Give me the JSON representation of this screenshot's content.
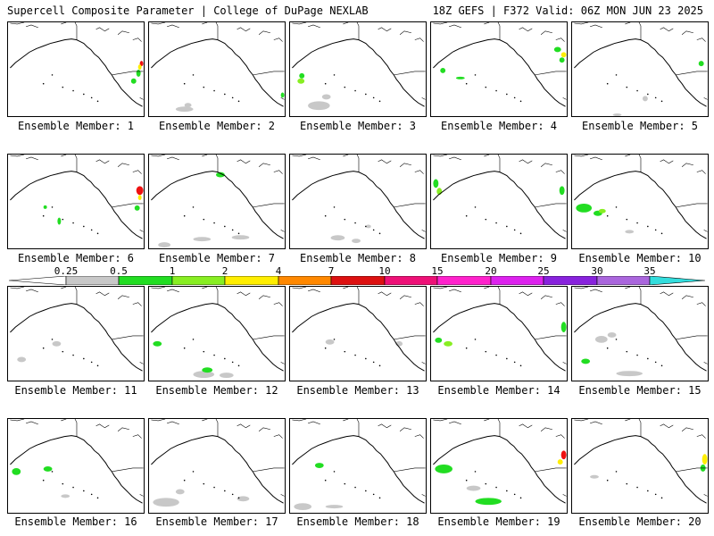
{
  "header": {
    "left": "Supercell Composite Parameter | College of DuPage NEXLAB",
    "right": "18Z GEFS | F372 Valid: 06Z MON JUN 23 2025"
  },
  "colors": {
    "gray": "#c8c8c8",
    "green": "#22dd22",
    "lightgreen": "#88ee22",
    "yellow": "#ffee00",
    "orange": "#ff8800",
    "red": "#ee1111"
  },
  "colorbar": {
    "ticks": [
      "0.25",
      "0.5",
      "1",
      "2",
      "4",
      "7",
      "10",
      "15",
      "20",
      "25",
      "30",
      "35"
    ],
    "colors": [
      "#ffffff",
      "#c8c8c8",
      "#22dd22",
      "#88ee22",
      "#ffee00",
      "#ff8800",
      "#dd1111",
      "#ee1177",
      "#ff22cc",
      "#dd22ee",
      "#8822dd",
      "#aa66dd",
      "#33dddd"
    ]
  },
  "members": [
    {
      "label": "Ensemble Member: 1"
    },
    {
      "label": "Ensemble Member: 2"
    },
    {
      "label": "Ensemble Member: 3"
    },
    {
      "label": "Ensemble Member: 4"
    },
    {
      "label": "Ensemble Member: 5"
    },
    {
      "label": "Ensemble Member: 6"
    },
    {
      "label": "Ensemble Member: 7"
    },
    {
      "label": "Ensemble Member: 8"
    },
    {
      "label": "Ensemble Member: 9"
    },
    {
      "label": "Ensemble Member: 10"
    },
    {
      "label": "Ensemble Member: 11"
    },
    {
      "label": "Ensemble Member: 12"
    },
    {
      "label": "Ensemble Member: 13"
    },
    {
      "label": "Ensemble Member: 14"
    },
    {
      "label": "Ensemble Member: 15"
    },
    {
      "label": "Ensemble Member: 16"
    },
    {
      "label": "Ensemble Member: 17"
    },
    {
      "label": "Ensemble Member: 18"
    },
    {
      "label": "Ensemble Member: 19"
    },
    {
      "label": "Ensemble Member: 20"
    }
  ]
}
